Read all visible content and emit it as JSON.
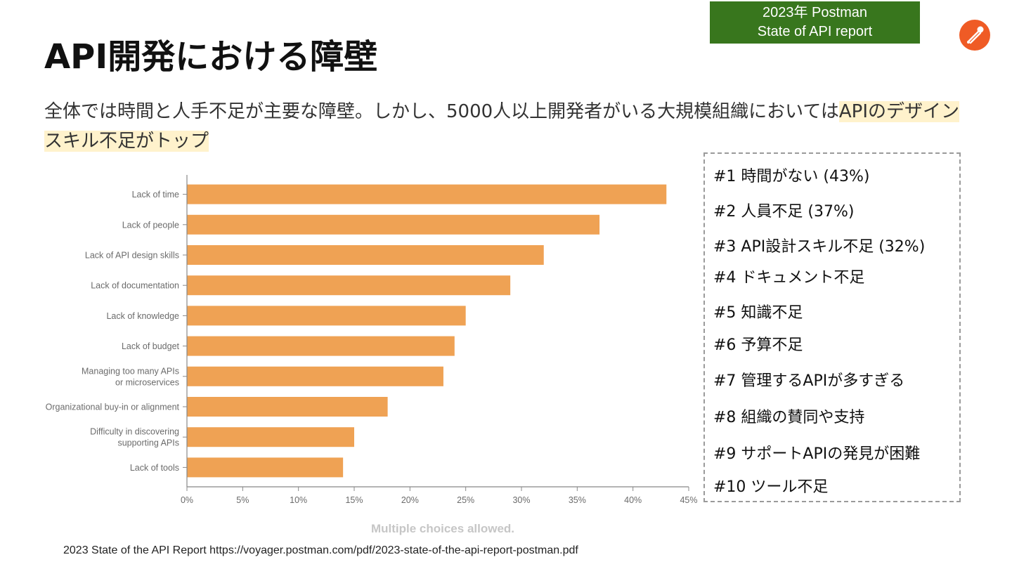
{
  "badge": {
    "line1": "2023年 Postman",
    "line2": "State of API report"
  },
  "logo": {
    "icon": "postman-logo-icon",
    "color": "#ef5b25"
  },
  "title": "API開発における障壁",
  "subtitle": {
    "text_plain": "全体では時間と人手不足が主要な障壁。しかし、5000人以上開発者がいる大規模組織においては",
    "text_highlight": "APIのデザインスキル不足がトップ"
  },
  "chart_data": {
    "type": "bar",
    "orientation": "horizontal",
    "categories": [
      "Lack of time",
      "Lack of people",
      "Lack of API design skills",
      "Lack of documentation",
      "Lack of knowledge",
      "Lack of budget",
      "Managing too many APIs or microservices",
      "Organizational buy-in or alignment",
      "Difficulty in discovering supporting APIs",
      "Lack of tools"
    ],
    "category_lines": [
      [
        "Lack of time"
      ],
      [
        "Lack of people"
      ],
      [
        "Lack of API design skills"
      ],
      [
        "Lack of documentation"
      ],
      [
        "Lack of knowledge"
      ],
      [
        "Lack of budget"
      ],
      [
        "Managing too many APIs",
        "or microservices"
      ],
      [
        "Organizational buy-in or alignment"
      ],
      [
        "Difficulty in discovering",
        "supporting APIs"
      ],
      [
        "Lack of tools"
      ]
    ],
    "values": [
      43,
      37,
      32,
      29,
      25,
      24,
      23,
      18,
      15,
      14
    ],
    "xlim": [
      0,
      45
    ],
    "xticks": [
      0,
      5,
      10,
      15,
      20,
      25,
      30,
      35,
      40,
      45
    ],
    "xtick_labels": [
      "0%",
      "5%",
      "10%",
      "15%",
      "20%",
      "25%",
      "30%",
      "35%",
      "40%",
      "45%"
    ],
    "bar_color": "#efa254",
    "xlabel": "",
    "ylabel": "",
    "grid": false
  },
  "note": "Multiple choices allowed.",
  "ranking": [
    "#1 時間がない (43%)",
    "#2 人員不足 (37%)",
    "#3 API設計スキル不足 (32%)",
    "#4 ドキュメント不足",
    "#5 知識不足",
    "#6 予算不足",
    "#7 管理するAPIが多すぎる",
    "#8 組織の賛同や支持",
    "#9 サポートAPIの発見が困難",
    "#10 ツール不足"
  ],
  "source": "2023 State of the API Report https://voyager.postman.com/pdf/2023-state-of-the-api-report-postman.pdf"
}
